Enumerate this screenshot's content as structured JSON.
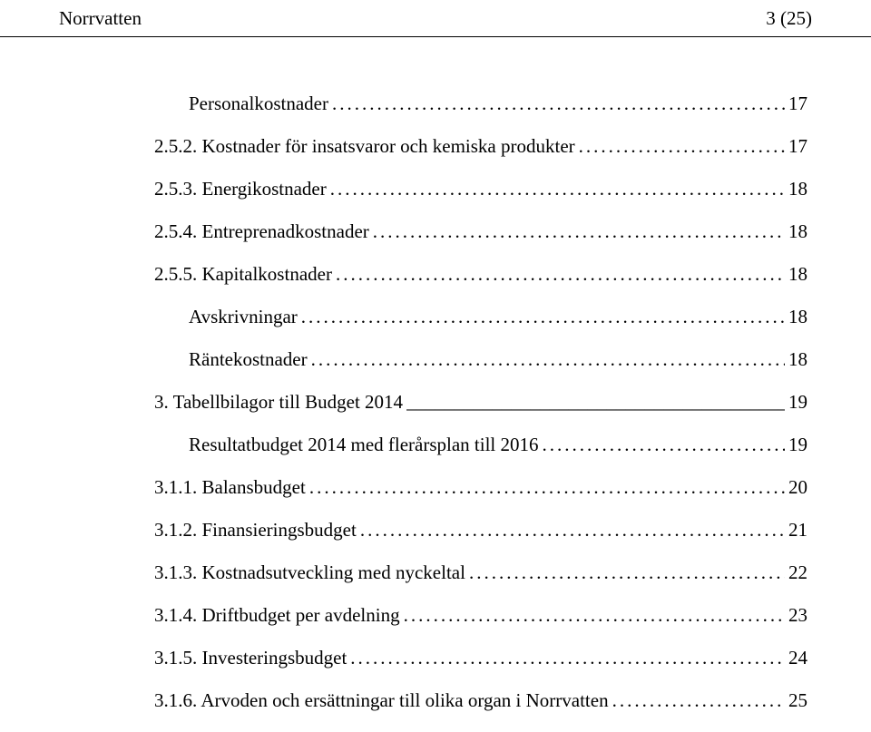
{
  "header": {
    "left": "Norrvatten",
    "right": "3 (25)"
  },
  "toc": [
    {
      "label": "Personalkostnader",
      "page": "17",
      "indent": 1,
      "leader": "dots"
    },
    {
      "label": "2.5.2. Kostnader för insatsvaror och kemiska produkter",
      "page": "17",
      "indent": 2,
      "leader": "dots"
    },
    {
      "label": "2.5.3. Energikostnader",
      "page": "18",
      "indent": 2,
      "leader": "dots"
    },
    {
      "label": "2.5.4. Entreprenadkostnader",
      "page": "18",
      "indent": 2,
      "leader": "dots"
    },
    {
      "label": "2.5.5. Kapitalkostnader",
      "page": "18",
      "indent": 2,
      "leader": "dots"
    },
    {
      "label": "Avskrivningar",
      "page": "18",
      "indent": 1,
      "leader": "dots"
    },
    {
      "label": "Räntekostnader",
      "page": "18",
      "indent": 1,
      "leader": "dots"
    },
    {
      "label": "3. Tabellbilagor till Budget 2014",
      "page": "19",
      "indent": 2,
      "leader": "underscore",
      "section": true
    },
    {
      "label": "Resultatbudget 2014 med flerårsplan till 2016",
      "page": "19",
      "indent": 1,
      "leader": "dots"
    },
    {
      "label": "3.1.1. Balansbudget",
      "page": "20",
      "indent": 2,
      "leader": "dots"
    },
    {
      "label": "3.1.2. Finansieringsbudget",
      "page": "21",
      "indent": 2,
      "leader": "dots"
    },
    {
      "label": "3.1.3. Kostnadsutveckling med nyckeltal",
      "page": "22",
      "indent": 2,
      "leader": "dots"
    },
    {
      "label": "3.1.4. Driftbudget per avdelning",
      "page": "23",
      "indent": 2,
      "leader": "dots"
    },
    {
      "label": "3.1.5. Investeringsbudget",
      "page": "24",
      "indent": 2,
      "leader": "dots"
    },
    {
      "label": "3.1.6. Arvoden och ersättningar till olika organ i Norrvatten",
      "page": "25",
      "indent": 2,
      "leader": "dots"
    }
  ]
}
